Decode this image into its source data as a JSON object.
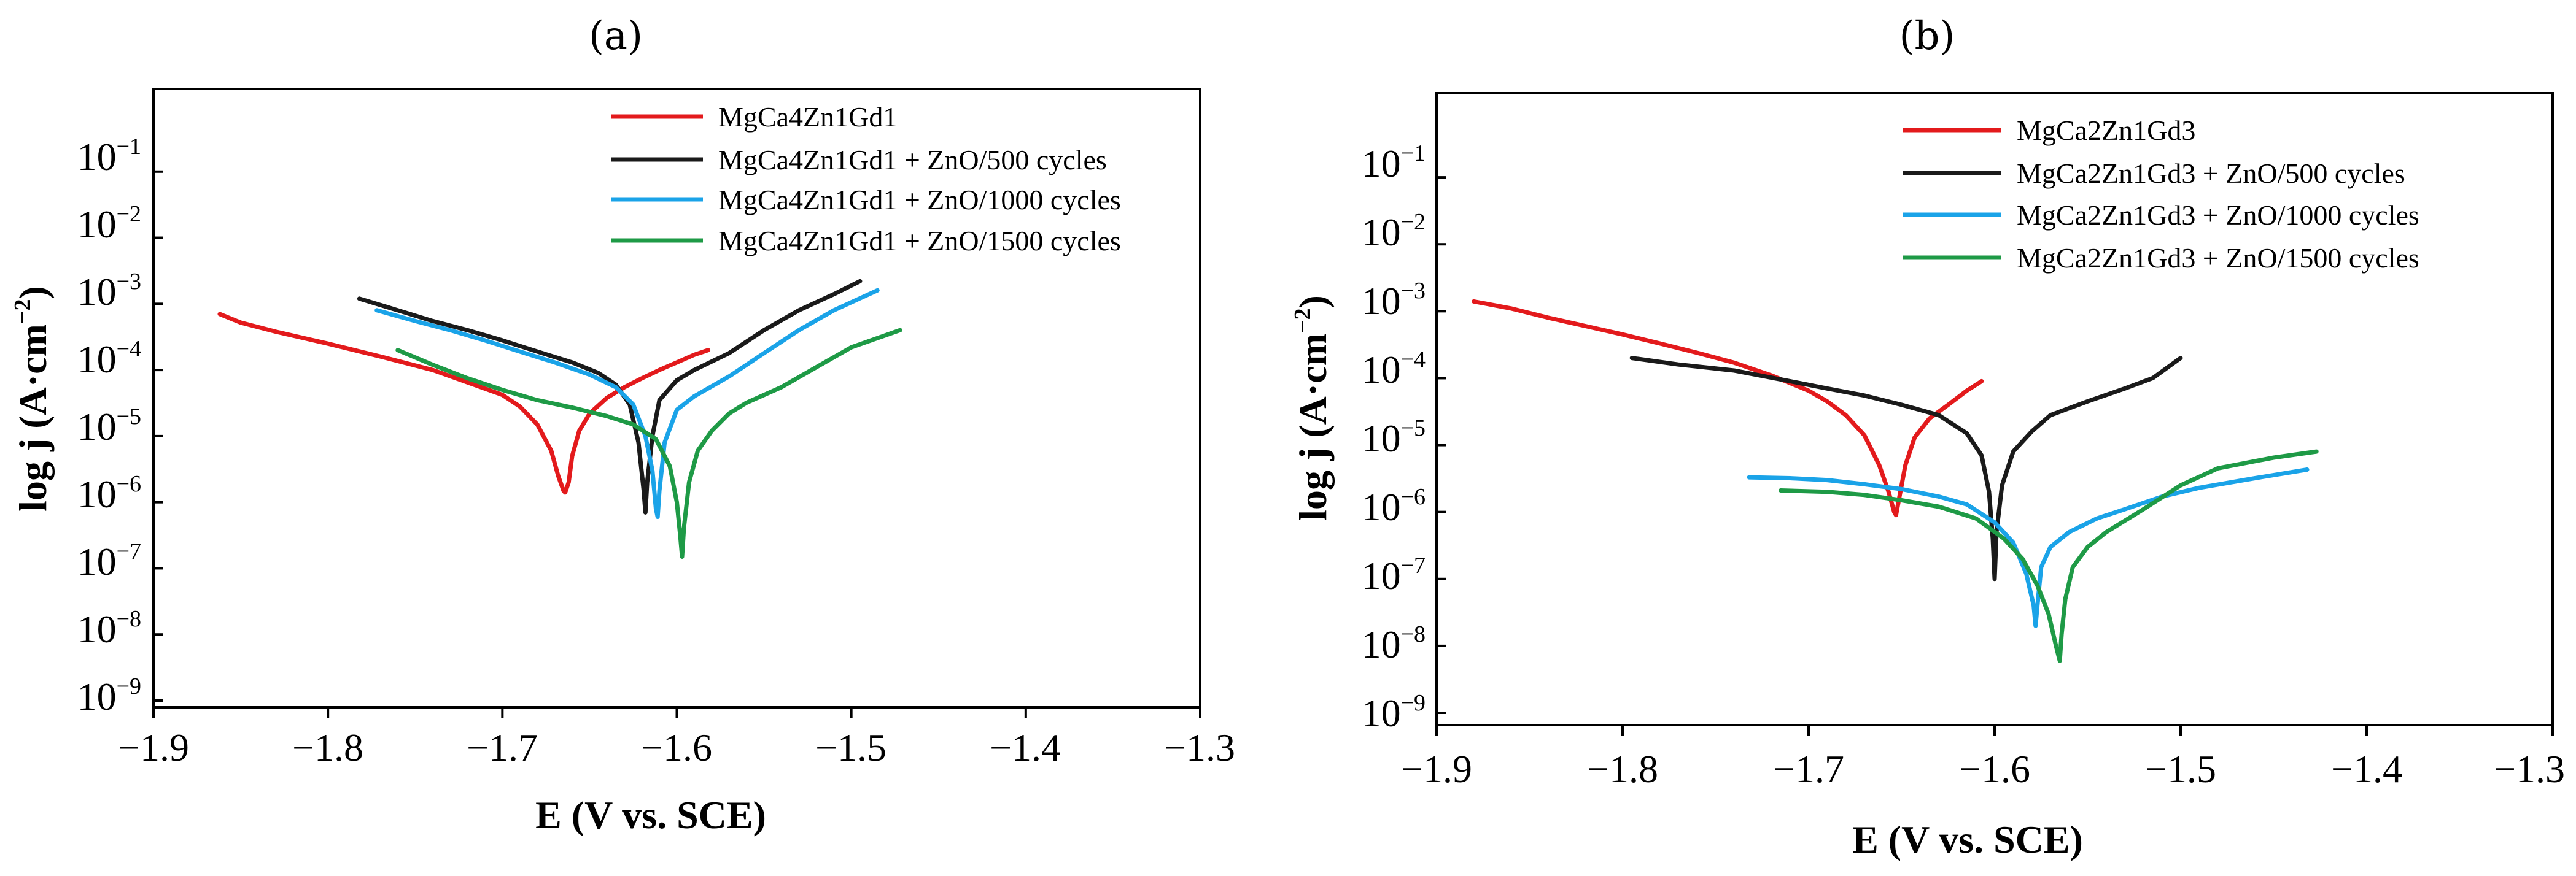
{
  "chart_data": [
    {
      "type": "line",
      "panel": "(a)",
      "xlabel": "E (V vs. SCE)",
      "ylabel": "log j (A·cm",
      "ylabel_sup": "−2",
      "ylabel_close": ")",
      "xlim": [
        -1.9,
        -1.3
      ],
      "ylim_log10": [
        -9,
        0
      ],
      "y_scale": "log",
      "grid": false,
      "legend_position": "top-right",
      "x_ticks": [
        "−1.9",
        "−1.8",
        "−1.7",
        "−1.6",
        "−1.5",
        "−1.4",
        "−1.3"
      ],
      "y_ticks": [
        {
          "base": "10",
          "exp": "−1"
        },
        {
          "base": "10",
          "exp": "−2"
        },
        {
          "base": "10",
          "exp": "−3"
        },
        {
          "base": "10",
          "exp": "−4"
        },
        {
          "base": "10",
          "exp": "−5"
        },
        {
          "base": "10",
          "exp": "−6"
        },
        {
          "base": "10",
          "exp": "−7"
        },
        {
          "base": "10",
          "exp": "−8"
        },
        {
          "base": "10",
          "exp": "−9"
        }
      ],
      "series": [
        {
          "name": "MgCa4Zn1Gd1",
          "color": "#e31a1c",
          "x": [
            -1.862,
            -1.85,
            -1.83,
            -1.8,
            -1.77,
            -1.74,
            -1.72,
            -1.7,
            -1.69,
            -1.68,
            -1.672,
            -1.668,
            -1.665,
            -1.664,
            -1.662,
            -1.66,
            -1.656,
            -1.65,
            -1.64,
            -1.63,
            -1.62,
            -1.61,
            -1.6,
            -1.59,
            -1.582
          ],
          "y": [
            0.0007,
            0.00052,
            0.00038,
            0.00025,
            0.00016,
            0.0001,
            6.5e-05,
            4.2e-05,
            2.8e-05,
            1.5e-05,
            6e-06,
            2.5e-06,
            1.5e-06,
            1.4e-06,
            2e-06,
            5e-06,
            1.2e-05,
            2.2e-05,
            3.8e-05,
            5.5e-05,
            7.5e-05,
            0.0001,
            0.00013,
            0.00017,
            0.0002
          ]
        },
        {
          "name": "MgCa4Zn1Gd1 + ZnO/500 cycles",
          "color": "#1a1a1a",
          "x": [
            -1.782,
            -1.76,
            -1.74,
            -1.72,
            -1.7,
            -1.68,
            -1.66,
            -1.645,
            -1.635,
            -1.627,
            -1.622,
            -1.619,
            -1.618,
            -1.617,
            -1.614,
            -1.61,
            -1.6,
            -1.59,
            -1.57,
            -1.55,
            -1.53,
            -1.51,
            -1.495
          ],
          "y": [
            0.0012,
            0.0008,
            0.00055,
            0.0004,
            0.00028,
            0.00019,
            0.00013,
            9e-05,
            6e-05,
            3e-05,
            8e-06,
            1.5e-06,
            7e-07,
            2e-06,
            1e-05,
            3.5e-05,
            7e-05,
            0.0001,
            0.00018,
            0.0004,
            0.0008,
            0.0014,
            0.0022
          ]
        },
        {
          "name": "MgCa4Zn1Gd1 + ZnO/1000 cycles",
          "color": "#1aa3e8",
          "x": [
            -1.772,
            -1.75,
            -1.73,
            -1.71,
            -1.69,
            -1.67,
            -1.65,
            -1.635,
            -1.625,
            -1.618,
            -1.614,
            -1.612,
            -1.611,
            -1.61,
            -1.607,
            -1.6,
            -1.59,
            -1.57,
            -1.55,
            -1.53,
            -1.51,
            -1.485
          ],
          "y": [
            0.0008,
            0.00055,
            0.0004,
            0.00028,
            0.00019,
            0.00013,
            8.5e-05,
            5.5e-05,
            3e-05,
            1e-05,
            3e-06,
            8e-07,
            6e-07,
            1.5e-06,
            8e-06,
            2.5e-05,
            4e-05,
            8e-05,
            0.00018,
            0.0004,
            0.0008,
            0.0016
          ]
        },
        {
          "name": "MgCa4Zn1Gd1 + ZnO/1500 cycles",
          "color": "#1e9a46",
          "x": [
            -1.76,
            -1.74,
            -1.72,
            -1.7,
            -1.68,
            -1.66,
            -1.64,
            -1.625,
            -1.612,
            -1.604,
            -1.6,
            -1.598,
            -1.597,
            -1.596,
            -1.593,
            -1.588,
            -1.58,
            -1.57,
            -1.56,
            -1.54,
            -1.52,
            -1.5,
            -1.472
          ],
          "y": [
            0.0002,
            0.00012,
            7.5e-05,
            5e-05,
            3.5e-05,
            2.7e-05,
            2e-05,
            1.5e-05,
            9e-06,
            3.5e-06,
            1e-06,
            3e-07,
            1.5e-07,
            4e-07,
            2e-06,
            6e-06,
            1.2e-05,
            2.2e-05,
            3.2e-05,
            5.5e-05,
            0.00011,
            0.00022,
            0.0004
          ]
        }
      ]
    },
    {
      "type": "line",
      "panel": "(b)",
      "xlabel": "E (V vs. SCE)",
      "ylabel": "log j (A·cm",
      "ylabel_sup": "−2",
      "ylabel_close": ")",
      "xlim": [
        -1.9,
        -1.3
      ],
      "ylim_log10": [
        -9,
        0
      ],
      "y_scale": "log",
      "grid": false,
      "legend_position": "top-right",
      "x_ticks": [
        "−1.9",
        "−1.8",
        "−1.7",
        "−1.6",
        "−1.5",
        "−1.4",
        "−1.3"
      ],
      "y_ticks": [
        {
          "base": "10",
          "exp": "−1"
        },
        {
          "base": "10",
          "exp": "−2"
        },
        {
          "base": "10",
          "exp": "−3"
        },
        {
          "base": "10",
          "exp": "−4"
        },
        {
          "base": "10",
          "exp": "−5"
        },
        {
          "base": "10",
          "exp": "−6"
        },
        {
          "base": "10",
          "exp": "−7"
        },
        {
          "base": "10",
          "exp": "−8"
        },
        {
          "base": "10",
          "exp": "−9"
        }
      ],
      "series": [
        {
          "name": "MgCa2Zn1Gd3",
          "color": "#e31a1c",
          "x": [
            -1.88,
            -1.86,
            -1.84,
            -1.82,
            -1.8,
            -1.78,
            -1.76,
            -1.74,
            -1.72,
            -1.7,
            -1.69,
            -1.68,
            -1.67,
            -1.662,
            -1.657,
            -1.654,
            -1.653,
            -1.651,
            -1.648,
            -1.643,
            -1.635,
            -1.625,
            -1.615,
            -1.607
          ],
          "y": [
            0.0014,
            0.0011,
            0.0008,
            0.0006,
            0.00045,
            0.00033,
            0.00024,
            0.00017,
            0.00011,
            6.5e-05,
            4.5e-05,
            2.8e-05,
            1.4e-05,
            5e-06,
            2e-06,
            1e-06,
            9e-07,
            1.8e-06,
            5e-06,
            1.3e-05,
            2.5e-05,
            4e-05,
            6.5e-05,
            9e-05
          ]
        },
        {
          "name": "MgCa2Zn1Gd3 + ZnO/500 cycles",
          "color": "#1a1a1a",
          "x": [
            -1.795,
            -1.77,
            -1.74,
            -1.71,
            -1.69,
            -1.67,
            -1.65,
            -1.63,
            -1.615,
            -1.607,
            -1.603,
            -1.601,
            -1.6,
            -1.599,
            -1.596,
            -1.59,
            -1.58,
            -1.57,
            -1.55,
            -1.53,
            -1.515,
            -1.5
          ],
          "y": [
            0.0002,
            0.00016,
            0.00013,
            9e-05,
            7e-05,
            5.5e-05,
            4e-05,
            2.8e-05,
            1.5e-05,
            7e-06,
            2e-06,
            4e-07,
            1e-07,
            5e-07,
            2.5e-06,
            8e-06,
            1.6e-05,
            2.8e-05,
            4.5e-05,
            7e-05,
            0.0001,
            0.0002
          ]
        },
        {
          "name": "MgCa2Zn1Gd3 + ZnO/1000 cycles",
          "color": "#1aa3e8",
          "x": [
            -1.732,
            -1.71,
            -1.69,
            -1.67,
            -1.65,
            -1.63,
            -1.615,
            -1.6,
            -1.59,
            -1.583,
            -1.579,
            -1.578,
            -1.577,
            -1.575,
            -1.57,
            -1.56,
            -1.545,
            -1.53,
            -1.51,
            -1.49,
            -1.46,
            -1.432
          ],
          "y": [
            3.3e-06,
            3.2e-06,
            3e-06,
            2.6e-06,
            2.2e-06,
            1.7e-06,
            1.3e-06,
            7e-07,
            3.5e-07,
            1.2e-07,
            4e-08,
            2e-08,
            4e-08,
            1.5e-07,
            3e-07,
            5e-07,
            8e-07,
            1.1e-06,
            1.7e-06,
            2.3e-06,
            3.2e-06,
            4.3e-06
          ]
        },
        {
          "name": "MgCa2Zn1Gd3 + ZnO/1500 cycles",
          "color": "#1e9a46",
          "x": [
            -1.715,
            -1.69,
            -1.67,
            -1.65,
            -1.63,
            -1.61,
            -1.595,
            -1.585,
            -1.577,
            -1.571,
            -1.567,
            -1.565,
            -1.564,
            -1.562,
            -1.558,
            -1.55,
            -1.54,
            -1.52,
            -1.5,
            -1.48,
            -1.45,
            -1.427
          ],
          "y": [
            2.1e-06,
            2e-06,
            1.8e-06,
            1.5e-06,
            1.2e-06,
            8e-07,
            4e-07,
            2e-07,
            8e-08,
            3e-08,
            1e-08,
            6e-09,
            1.5e-08,
            5e-08,
            1.5e-07,
            3e-07,
            5e-07,
            1.1e-06,
            2.5e-06,
            4.5e-06,
            6.5e-06,
            8e-06
          ]
        }
      ]
    }
  ]
}
